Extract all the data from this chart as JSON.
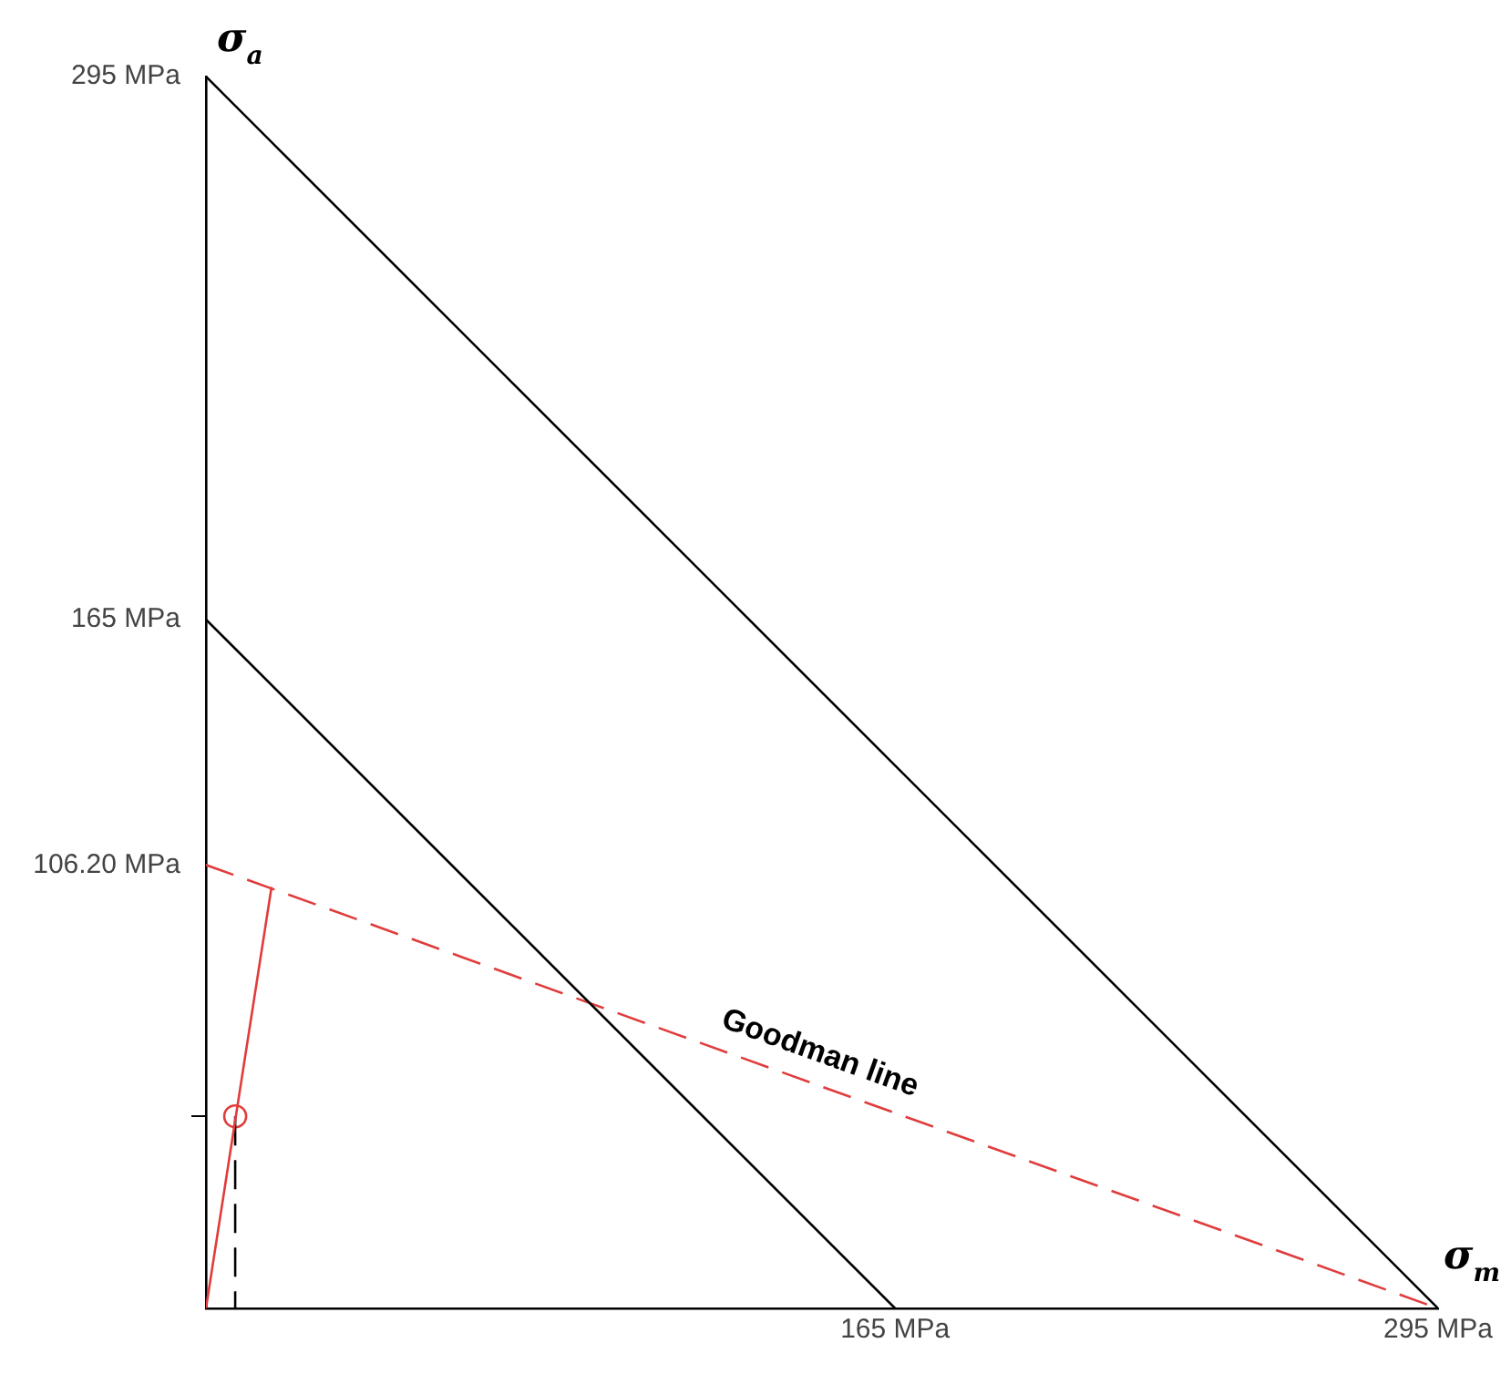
{
  "chart_data": {
    "type": "line",
    "xlabel": "σ$_{m}$",
    "ylabel": "σ$_{a}$",
    "xlim": [
      0,
      295
    ],
    "ylim": [
      0,
      295
    ],
    "xticks": [
      {
        "value": 165,
        "label": "165 MPa"
      },
      {
        "value": 295,
        "label": "295 MPa"
      }
    ],
    "yticks": [
      {
        "value": 46,
        "label": null
      },
      {
        "value": 106.2,
        "label": "106.20 MPa"
      },
      {
        "value": 165,
        "label": "165 MPa"
      },
      {
        "value": 295,
        "label": "295 MPa"
      }
    ],
    "grid": false,
    "legend": false,
    "marker": "none",
    "series": [
      {
        "type": "line",
        "color": "#000000",
        "x": [
          0,
          295
        ],
        "values": [
          295,
          0
        ],
        "line_style": "solid"
      },
      {
        "type": "line",
        "color": "#000000",
        "x": [
          0,
          165
        ],
        "values": [
          165,
          0
        ],
        "line_style": "solid"
      },
      {
        "type": "line",
        "name": "Goodman line",
        "color": "#e03c3c",
        "x": [
          0,
          295
        ],
        "values": [
          106.2,
          0
        ],
        "line_style": "dashed"
      },
      {
        "type": "line",
        "color": "#e03c3c",
        "x": [
          0,
          15.7
        ],
        "values": [
          0,
          100.9
        ],
        "line_style": "solid"
      },
      {
        "type": "line",
        "color": "#000000",
        "x": [
          7,
          7
        ],
        "values": [
          46,
          0
        ],
        "line_style": "dashed"
      },
      {
        "type": "scatter",
        "color": "#e03c3c",
        "x": [
          7
        ],
        "values": [
          46
        ],
        "marker": "circle"
      }
    ]
  }
}
